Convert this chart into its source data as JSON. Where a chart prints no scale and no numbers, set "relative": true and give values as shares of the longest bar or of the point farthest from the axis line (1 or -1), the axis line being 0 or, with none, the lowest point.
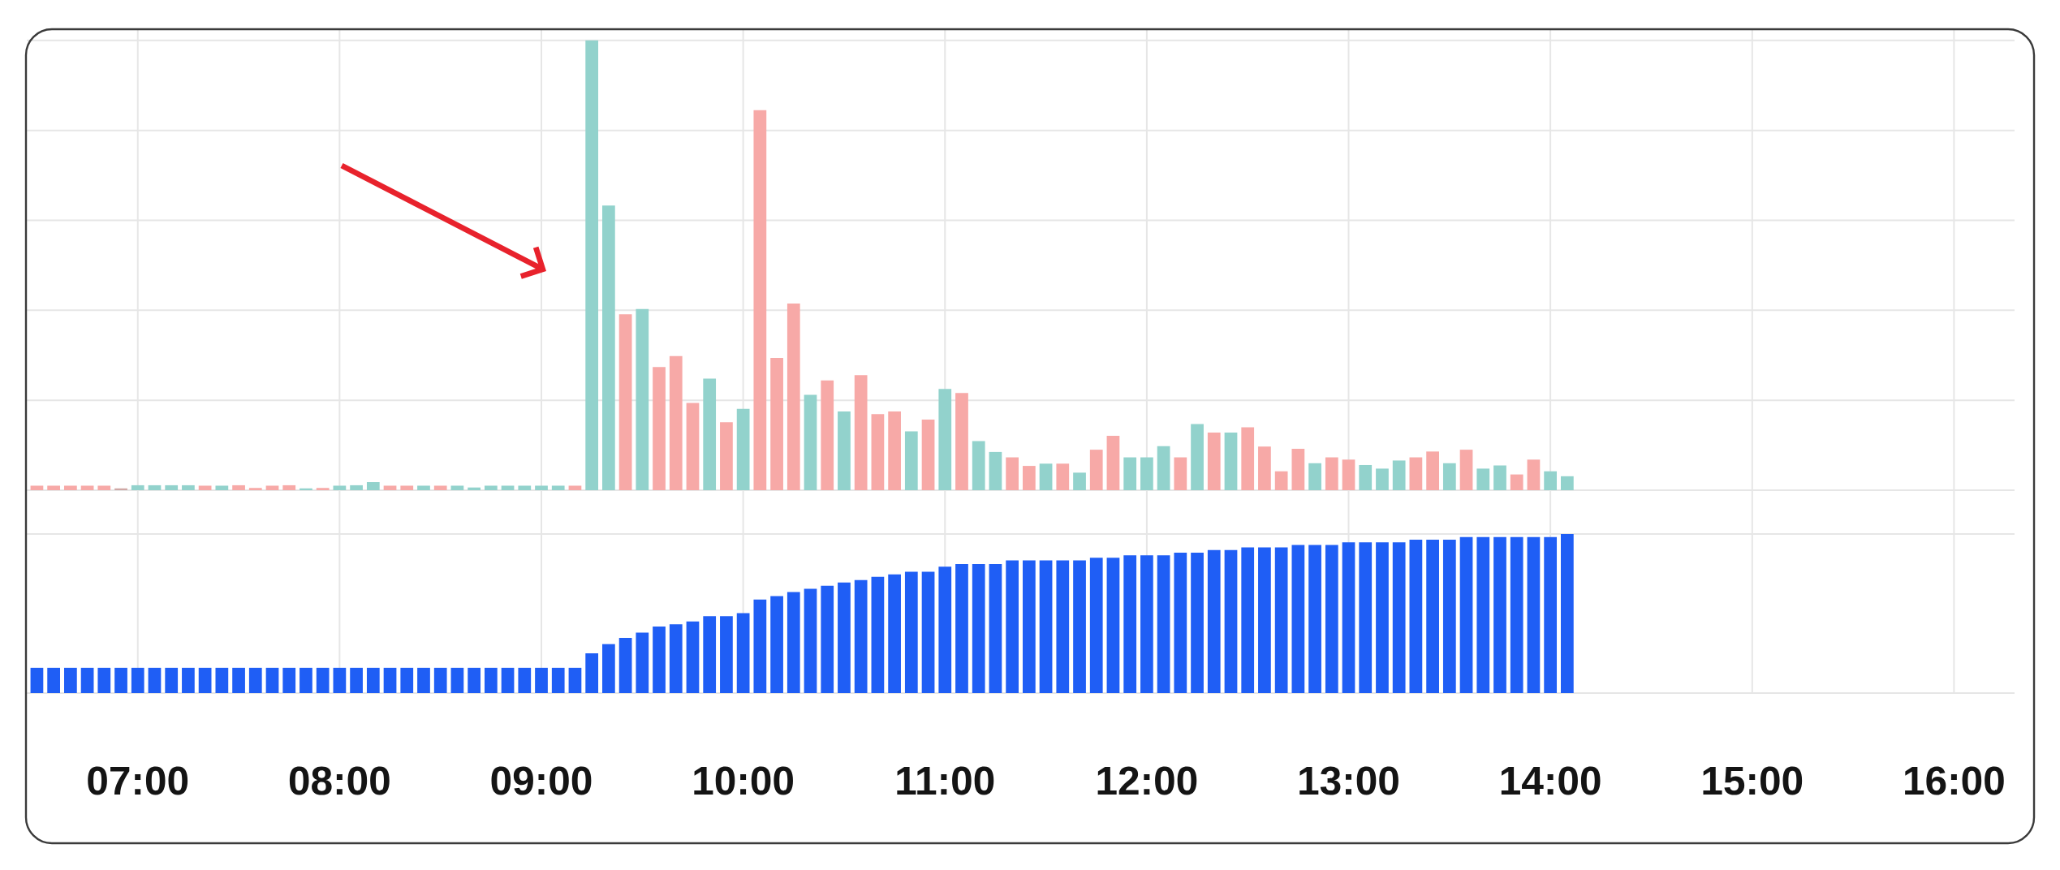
{
  "chart_data": [
    {
      "type": "bar",
      "relative": true,
      "grid": true,
      "tick_labels": false,
      "x": [
        6.5,
        6.5833,
        6.6667,
        6.75,
        6.8333,
        6.9167,
        7,
        7.0833,
        7.1667,
        7.25,
        7.3333,
        7.4167,
        7.5,
        7.5833,
        7.6667,
        7.75,
        7.8333,
        7.9167,
        8,
        8.0833,
        8.1667,
        8.25,
        8.3333,
        8.4167,
        8.5,
        8.5833,
        8.6667,
        8.75,
        8.8333,
        8.9167,
        9,
        9.0833,
        9.1667,
        9.25,
        9.3333,
        9.4167,
        9.5,
        9.5833,
        9.6667,
        9.75,
        9.8333,
        9.9167,
        10,
        10.0833,
        10.1667,
        10.25,
        10.3333,
        10.4167,
        10.5,
        10.5833,
        10.6667,
        10.75,
        10.8333,
        10.9167,
        11,
        11.0833,
        11.1667,
        11.25,
        11.3333,
        11.4167,
        11.5,
        11.5833,
        11.6667,
        11.75,
        11.8333,
        11.9167,
        12,
        12.0833,
        12.1667,
        12.25,
        12.3333,
        12.4167,
        12.5,
        12.5833,
        12.6667,
        12.75,
        12.8333,
        12.9167,
        13,
        13.0833,
        13.1667,
        13.25,
        13.3333,
        13.4167,
        13.5,
        13.5833,
        13.6667,
        13.75,
        13.8333,
        13.9167,
        14,
        14.0833
      ],
      "values": [
        0.01,
        0.01,
        0.01,
        0.01,
        0.01,
        0.004,
        0.011,
        0.011,
        0.011,
        0.011,
        0.01,
        0.01,
        0.011,
        0.005,
        0.01,
        0.011,
        0.004,
        0.005,
        0.01,
        0.011,
        0.018,
        0.01,
        0.01,
        0.01,
        0.01,
        0.01,
        0.006,
        0.01,
        0.01,
        0.01,
        0.01,
        0.01,
        0.01,
        1,
        0.633,
        0.391,
        0.403,
        0.274,
        0.298,
        0.194,
        0.248,
        0.151,
        0.181,
        0.845,
        0.294,
        0.415,
        0.212,
        0.244,
        0.175,
        0.256,
        0.169,
        0.175,
        0.131,
        0.157,
        0.225,
        0.216,
        0.109,
        0.085,
        0.073,
        0.054,
        0.059,
        0.059,
        0.039,
        0.09,
        0.121,
        0.073,
        0.073,
        0.098,
        0.073,
        0.147,
        0.128,
        0.128,
        0.14,
        0.097,
        0.042,
        0.092,
        0.06,
        0.073,
        0.068,
        0.056,
        0.048,
        0.066,
        0.073,
        0.086,
        0.06,
        0.09,
        0.048,
        0.055,
        0.035,
        0.068,
        0.042,
        0.031
      ],
      "colors": [
        "#f7a9a7",
        "#f7a9a7",
        "#f7a9a7",
        "#f7a9a7",
        "#f7a9a7",
        "#cfa7a5",
        "#92d2cc",
        "#92d2cc",
        "#92d2cc",
        "#92d2cc",
        "#f7a9a7",
        "#92d2cc",
        "#f7a9a7",
        "#f7a9a7",
        "#f7a9a7",
        "#f7a9a7",
        "#92d2cc",
        "#f7a9a7",
        "#92d2cc",
        "#92d2cc",
        "#92d2cc",
        "#f7a9a7",
        "#f7a9a7",
        "#92d2cc",
        "#f7a9a7",
        "#92d2cc",
        "#92d2cc",
        "#92d2cc",
        "#92d2cc",
        "#92d2cc",
        "#92d2cc",
        "#92d2cc",
        "#f7a9a7",
        "#92d2cc",
        "#92d2cc",
        "#f7a9a7",
        "#92d2cc",
        "#f7a9a7",
        "#f7a9a7",
        "#f7a9a7",
        "#92d2cc",
        "#f7a9a7",
        "#92d2cc",
        "#f7a9a7",
        "#f7a9a7",
        "#f7a9a7",
        "#92d2cc",
        "#f7a9a7",
        "#92d2cc",
        "#f7a9a7",
        "#f7a9a7",
        "#f7a9a7",
        "#92d2cc",
        "#f7a9a7",
        "#92d2cc",
        "#f7a9a7",
        "#92d2cc",
        "#92d2cc",
        "#f7a9a7",
        "#f7a9a7",
        "#92d2cc",
        "#f7a9a7",
        "#92d2cc",
        "#f7a9a7",
        "#f7a9a7",
        "#92d2cc",
        "#92d2cc",
        "#92d2cc",
        "#f7a9a7",
        "#92d2cc",
        "#f7a9a7",
        "#92d2cc",
        "#f7a9a7",
        "#f7a9a7",
        "#f7a9a7",
        "#f7a9a7",
        "#92d2cc",
        "#f7a9a7",
        "#f7a9a7",
        "#92d2cc",
        "#92d2cc",
        "#92d2cc",
        "#f7a9a7",
        "#f7a9a7",
        "#92d2cc",
        "#f7a9a7",
        "#92d2cc",
        "#92d2cc",
        "#f7a9a7",
        "#f7a9a7",
        "#92d2cc",
        "#92d2cc"
      ],
      "xlim": [
        6.45,
        16.3
      ],
      "xticks": [
        7,
        8,
        9,
        10,
        11,
        12,
        13,
        14,
        15,
        16
      ]
    },
    {
      "type": "bar",
      "relative": true,
      "grid": true,
      "color": "#1f5ef5",
      "x": [
        6.5,
        6.5833,
        6.6667,
        6.75,
        6.8333,
        6.9167,
        7,
        7.0833,
        7.1667,
        7.25,
        7.3333,
        7.4167,
        7.5,
        7.5833,
        7.6667,
        7.75,
        7.8333,
        7.9167,
        8,
        8.0833,
        8.1667,
        8.25,
        8.3333,
        8.4167,
        8.5,
        8.5833,
        8.6667,
        8.75,
        8.8333,
        8.9167,
        9,
        9.0833,
        9.1667,
        9.25,
        9.3333,
        9.4167,
        9.5,
        9.5833,
        9.6667,
        9.75,
        9.8333,
        9.9167,
        10,
        10.0833,
        10.1667,
        10.25,
        10.3333,
        10.4167,
        10.5,
        10.5833,
        10.6667,
        10.75,
        10.8333,
        10.9167,
        11,
        11.0833,
        11.1667,
        11.25,
        11.3333,
        11.4167,
        11.5,
        11.5833,
        11.6667,
        11.75,
        11.8333,
        11.9167,
        12,
        12.0833,
        12.1667,
        12.25,
        12.3333,
        12.4167,
        12.5,
        12.5833,
        12.6667,
        12.75,
        12.8333,
        12.9167,
        13,
        13.0833,
        13.1667,
        13.25,
        13.3333,
        13.4167,
        13.5,
        13.5833,
        13.6667,
        13.75,
        13.8333,
        13.9167,
        14,
        14.0833
      ],
      "values": [
        0.159,
        0.159,
        0.159,
        0.159,
        0.159,
        0.159,
        0.159,
        0.159,
        0.159,
        0.159,
        0.159,
        0.159,
        0.159,
        0.159,
        0.159,
        0.159,
        0.159,
        0.159,
        0.159,
        0.159,
        0.159,
        0.159,
        0.159,
        0.159,
        0.159,
        0.159,
        0.159,
        0.159,
        0.159,
        0.159,
        0.159,
        0.159,
        0.159,
        0.25,
        0.308,
        0.347,
        0.38,
        0.419,
        0.432,
        0.451,
        0.484,
        0.484,
        0.503,
        0.588,
        0.61,
        0.636,
        0.656,
        0.675,
        0.695,
        0.711,
        0.731,
        0.747,
        0.763,
        0.763,
        0.795,
        0.812,
        0.812,
        0.812,
        0.834,
        0.834,
        0.834,
        0.834,
        0.834,
        0.851,
        0.851,
        0.867,
        0.867,
        0.867,
        0.883,
        0.883,
        0.899,
        0.899,
        0.916,
        0.916,
        0.916,
        0.932,
        0.932,
        0.932,
        0.948,
        0.948,
        0.948,
        0.948,
        0.964,
        0.964,
        0.964,
        0.981,
        0.981,
        0.981,
        0.981,
        0.981,
        0.981,
        1
      ],
      "xlim": [
        6.45,
        16.3
      ],
      "xticks": [
        {
          "value": 7,
          "label": "07:00"
        },
        {
          "value": 8,
          "label": "08:00"
        },
        {
          "value": 9,
          "label": "09:00"
        },
        {
          "value": 10,
          "label": "10:00"
        },
        {
          "value": 11,
          "label": "11:00"
        },
        {
          "value": 12,
          "label": "12:00"
        },
        {
          "value": 13,
          "label": "13:00"
        },
        {
          "value": 14,
          "label": "14:00"
        },
        {
          "value": 15,
          "label": "15:00"
        },
        {
          "value": 16,
          "label": "16:00"
        }
      ]
    }
  ]
}
